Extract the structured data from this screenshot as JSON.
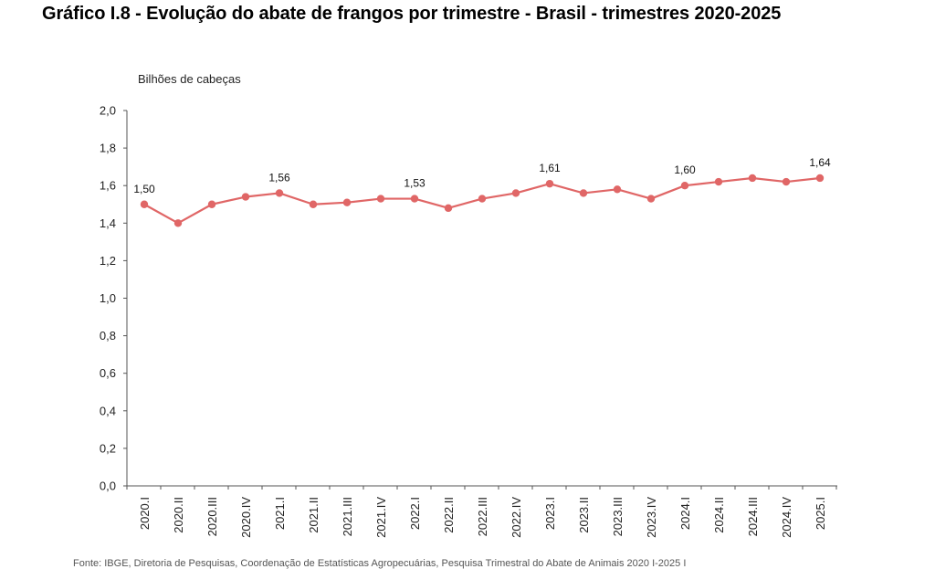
{
  "title": "Gráfico I.8 - Evolução do abate de frangos por trimestre - Brasil - trimestres 2020-2025",
  "footer": "Fonte: IBGE, Diretoria de Pesquisas, Coordenação de Estatísticas Agropecuárias, Pesquisa Trimestral do Abate de Animais 2020 I-2025 I",
  "chart_data": {
    "type": "line",
    "title": "Gráfico I.8 - Evolução do abate de frangos por trimestre - Brasil - trimestres 2020-2025",
    "xlabel": "",
    "ylabel": "Bilhões de cabeças",
    "ylim": [
      0,
      2.0
    ],
    "y_ticks": [
      "0,0",
      "0,2",
      "0,4",
      "0,6",
      "0,8",
      "1,0",
      "1,2",
      "1,4",
      "1,6",
      "1,8",
      "2,0"
    ],
    "grid": false,
    "color": "#e06666",
    "categories": [
      "2020.I",
      "2020.II",
      "2020.III",
      "2020.IV",
      "2021.I",
      "2021.II",
      "2021.III",
      "2021.IV",
      "2022.I",
      "2022.II",
      "2022.III",
      "2022.IV",
      "2023.I",
      "2023.II",
      "2023.III",
      "2023.IV",
      "2024.I",
      "2024.II",
      "2024.III",
      "2024.IV",
      "2025.I"
    ],
    "series": [
      {
        "values": [
          1.5,
          1.4,
          1.5,
          1.54,
          1.56,
          1.5,
          1.51,
          1.53,
          1.53,
          1.48,
          1.53,
          1.56,
          1.61,
          1.56,
          1.58,
          1.53,
          1.6,
          1.62,
          1.64,
          1.62,
          1.64
        ]
      }
    ],
    "data_labels": [
      {
        "index": 0,
        "text": "1,50"
      },
      {
        "index": 4,
        "text": "1,56"
      },
      {
        "index": 8,
        "text": "1,53"
      },
      {
        "index": 12,
        "text": "1,61"
      },
      {
        "index": 16,
        "text": "1,60"
      },
      {
        "index": 20,
        "text": "1,64"
      }
    ]
  }
}
